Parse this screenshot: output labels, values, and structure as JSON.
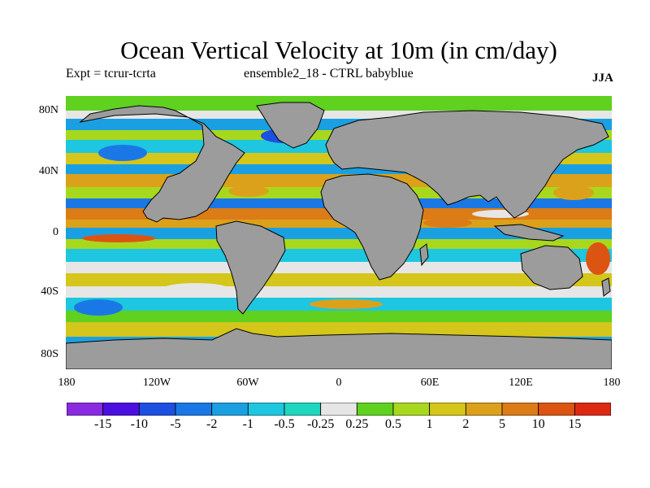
{
  "title": "Ocean Vertical Velocity at 10m (in cm/day)",
  "subtitle_left": "Expt = tcrur-tcrta",
  "subtitle_center": "ensemble2_18 - CTRL babyblue",
  "season": "JJA",
  "lat_labels": [
    "80N",
    "40N",
    "0",
    "40S",
    "80S"
  ],
  "lon_labels": [
    "180",
    "120W",
    "60W",
    "0",
    "60E",
    "120E",
    "180"
  ],
  "colorbar": {
    "labels": [
      "-15",
      "-10",
      "-5",
      "-2",
      "-1",
      "-0.5",
      "-0.25",
      "0.25",
      "0.5",
      "1",
      "2",
      "5",
      "10",
      "15"
    ],
    "colors": [
      "#8a2be2",
      "#4b0fe0",
      "#1d4fe0",
      "#1a78e6",
      "#1aa0e2",
      "#1ec6e0",
      "#1fd6bf",
      "#e6e6e6",
      "#5fd11e",
      "#a8d81e",
      "#d4c61a",
      "#dca11a",
      "#dc7c16",
      "#dc5412",
      "#dc2a12"
    ]
  },
  "colors": {
    "land": "#9c9c9c",
    "coast": "#000000"
  }
}
